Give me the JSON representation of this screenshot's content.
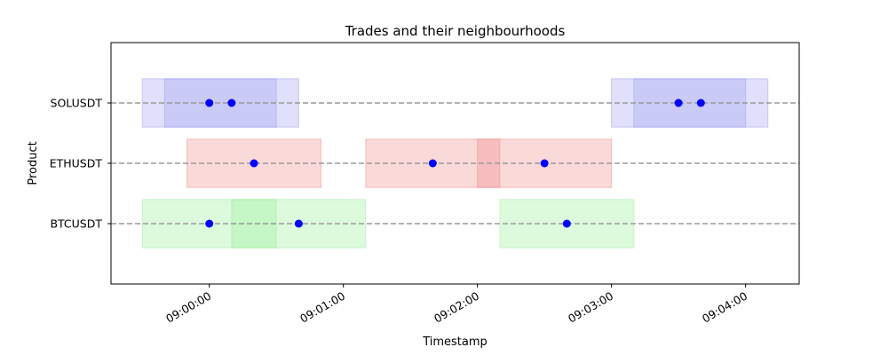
{
  "chart_data": {
    "type": "scatter",
    "title": "Trades and their neighbourhoods",
    "xlabel": "Timestamp",
    "ylabel": "Product",
    "categories": [
      "BTCUSDT",
      "ETHUSDT",
      "SOLUSDT"
    ],
    "x_ticks": [
      "09:00:00",
      "09:01:00",
      "09:02:00",
      "09:03:00",
      "09:04:00"
    ],
    "xlim": [
      "08:59:16",
      "09:04:24"
    ],
    "grid": false,
    "colors": {
      "points": "#0000ff",
      "BTCUSDT": "#90ee90",
      "ETHUSDT": "#f08080",
      "SOLUSDT": "#9999ee",
      "guide": "#999999"
    },
    "series": [
      {
        "product": "BTCUSDT",
        "trades": [
          "09:00:00",
          "09:00:40",
          "09:02:40"
        ],
        "neighbourhoods": [
          [
            "08:59:30",
            "09:00:30"
          ],
          [
            "09:00:10",
            "09:01:10"
          ],
          [
            "09:02:10",
            "09:03:10"
          ]
        ]
      },
      {
        "product": "ETHUSDT",
        "trades": [
          "09:00:20",
          "09:01:40",
          "09:02:30"
        ],
        "neighbourhoods": [
          [
            "08:59:50",
            "09:00:50"
          ],
          [
            "09:01:10",
            "09:02:10"
          ],
          [
            "09:02:00",
            "09:03:00"
          ]
        ]
      },
      {
        "product": "SOLUSDT",
        "trades": [
          "09:00:00",
          "09:00:10",
          "09:03:30",
          "09:03:40"
        ],
        "neighbourhoods": [
          [
            "08:59:30",
            "09:00:30"
          ],
          [
            "08:59:40",
            "09:00:40"
          ],
          [
            "09:03:00",
            "09:04:00"
          ],
          [
            "09:03:10",
            "09:04:10"
          ]
        ]
      }
    ]
  }
}
